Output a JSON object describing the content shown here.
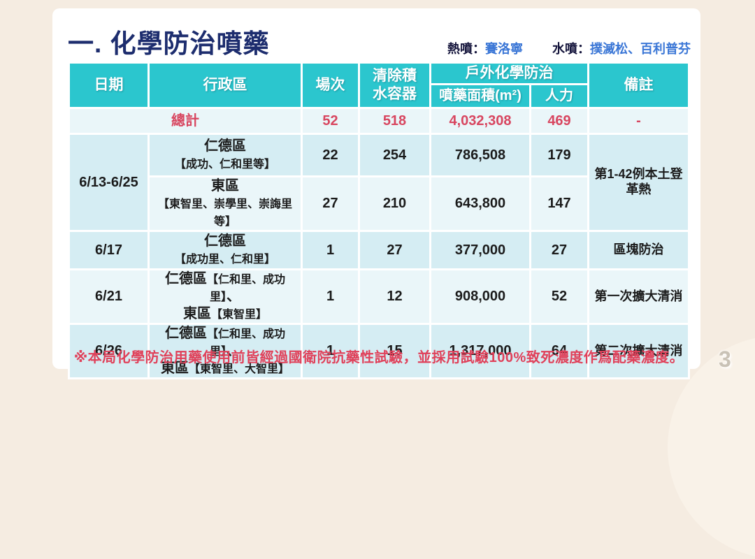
{
  "title": "一. 化學防治噴藥",
  "legend": {
    "hot_label": "熱噴：",
    "hot_value": "賽洛寧",
    "water_label": "水噴：",
    "water_value": "撲滅松、百利普芬"
  },
  "table": {
    "headers": {
      "date": "日期",
      "district": "行政區",
      "sessions": "場次",
      "containers": "清除積\n水容器",
      "outdoor": "戶外化學防治",
      "area": "噴藥面積(m²)",
      "manpower": "人力",
      "note": "備註"
    },
    "total_row": {
      "label": "總計",
      "sessions": "52",
      "containers": "518",
      "area": "4,032,308",
      "manpower": "469",
      "note": "-"
    },
    "rows": [
      {
        "date": "6/13-6/25",
        "date_span": 2,
        "district_lines": [
          "仁德區",
          "【成功、仁和里等】"
        ],
        "sessions": "22",
        "containers": "254",
        "area": "786,508",
        "manpower": "179",
        "note": "第1-42例本土登革熱",
        "note_span": 2,
        "shade": "dark"
      },
      {
        "district_lines": [
          "東區",
          "【東智里、崇學里、崇誨里等】"
        ],
        "sessions": "27",
        "containers": "210",
        "area": "643,800",
        "manpower": "147",
        "shade": "light"
      },
      {
        "date": "6/17",
        "district_lines": [
          "仁德區",
          "【成功里、仁和里】"
        ],
        "sessions": "1",
        "containers": "27",
        "area": "377,000",
        "manpower": "27",
        "note": "區塊防治",
        "shade": "dark"
      },
      {
        "date": "6/21",
        "district_lines": [
          "仁德區【仁和里、成功里】、",
          "東區【東智里】"
        ],
        "sessions": "1",
        "containers": "12",
        "area": "908,000",
        "manpower": "52",
        "note": "第一次擴大清消",
        "shade": "light"
      },
      {
        "date": "6/26",
        "district_lines": [
          "仁德區【仁和里、成功里】、",
          "東區【東智里、大智里】"
        ],
        "sessions": "1",
        "containers": "15",
        "area": "1,317,000",
        "manpower": "64",
        "note": "第二次擴大清消",
        "shade": "dark"
      }
    ]
  },
  "footnote": "※本局化學防治用藥使用前皆經過國衛院抗藥性試驗，並採用試驗100%致死濃度作爲配藥濃度。",
  "page_number": "3",
  "colors": {
    "header_teal": "#2bc6ce",
    "row_light": "#eaf6f9",
    "row_dark": "#d5edf3",
    "total_red": "#d8455f",
    "footnote_red": "#e0415a",
    "title_navy": "#1d2d6e",
    "legend_blue": "#3a76d6",
    "page_bg": "#f5ece1"
  }
}
